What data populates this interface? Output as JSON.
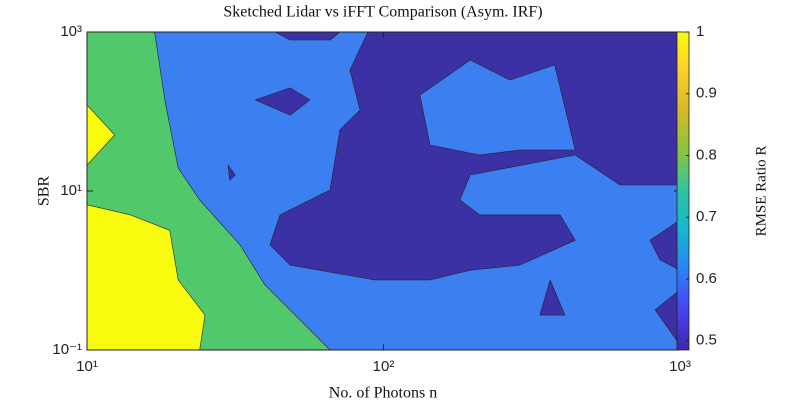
{
  "chart_data": {
    "type": "contour",
    "title": "Sketched Lidar vs iFFT Comparison (Asym. IRF)",
    "x_label": "No. of Photons n",
    "y_label": "SBR",
    "log_x": true,
    "log_y": true,
    "xlim": [
      10,
      1000
    ],
    "ylim": [
      0.1,
      1000
    ],
    "xticks": [
      {
        "value": 10,
        "label": "10¹"
      },
      {
        "value": 100,
        "label": "10²"
      },
      {
        "value": 1000,
        "label": "10³"
      }
    ],
    "yticks": [
      {
        "value": 0.1,
        "label": "10⁻¹"
      },
      {
        "value": 10,
        "label": "10¹"
      },
      {
        "value": 1000,
        "label": "10³"
      }
    ],
    "colorbar": {
      "label": "RMSE Ratio R",
      "lim": [
        0.485,
        1
      ],
      "ticks": [
        0.5,
        0.6,
        0.7,
        0.8,
        0.9,
        1
      ],
      "colormap": [
        "#3e26a8",
        "#4743f0",
        "#2d80f5",
        "#16b6d2",
        "#2cc59f",
        "#86c53d",
        "#d4b82b",
        "#fdce2c",
        "#f9fb0e"
      ]
    },
    "regions": [
      {
        "level": 0.6,
        "color": "#3b7ff0",
        "x": [
          10,
          1000,
          1000,
          10
        ],
        "y": [
          0.1,
          0.1,
          1000,
          1000
        ]
      },
      {
        "level": 0.8,
        "color": "#52c86c",
        "x": [
          16.9,
          18.3,
          20.3,
          24,
          32.8,
          39.8,
          66,
          10,
          10
        ],
        "y": [
          1000,
          140,
          19.5,
          7.7,
          2.1,
          0.66,
          0.1,
          0.1,
          1000
        ]
      },
      {
        "level": 1,
        "color": "#f9fb0e",
        "x": [
          10,
          12.4,
          10
        ],
        "y": [
          121,
          50.6,
          21.2
        ]
      },
      {
        "level": 1,
        "color": "#f9fb0e",
        "x": [
          10,
          14,
          19,
          20.3,
          25,
          24,
          10
        ],
        "y": [
          6.7,
          5,
          3.2,
          0.76,
          0.275,
          0.1,
          0.1
        ]
      },
      {
        "level": 0.5,
        "color": "#3b30a4",
        "x": [
          88.6,
          1000,
          1000,
          628,
          443,
          196,
          181,
          211,
          394,
          443,
          288,
          196,
          143.5,
          93.6,
          48.4,
          41.4,
          44.8,
          66,
          71.3,
          83.3,
          77.1
        ],
        "y": [
          1000,
          1000,
          11.9,
          11.9,
          28.4,
          15.9,
          7.7,
          5,
          5,
          2.4,
          1.17,
          1.01,
          0.76,
          0.76,
          1.17,
          2.1,
          5,
          10.3,
          58.5,
          104,
          333
        ]
      },
      {
        "level": 0.6,
        "color": "#3b7ff0",
        "x": [
          132.7,
          196,
          267,
          378,
          443,
          288,
          211,
          143.5
        ],
        "y": [
          161,
          445,
          249,
          385,
          32.8,
          32.8,
          28.4,
          37.9
        ]
      },
      {
        "level": 0.5,
        "color": "#3b30a4",
        "x": [
          43.1,
          71.3,
          66,
          48.4
        ],
        "y": [
          1000,
          1000,
          793,
          793
        ]
      },
      {
        "level": 0.5,
        "color": "#3b30a4",
        "x": [
          36.9,
          48.4,
          56.5,
          48.4
        ],
        "y": [
          140,
          198,
          140,
          90
        ]
      },
      {
        "level": 0.5,
        "color": "#3b30a4",
        "x": [
          29.9,
          31.6,
          30.3
        ],
        "y": [
          21.2,
          15.9,
          13.7
        ]
      },
      {
        "level": 0.5,
        "color": "#3b30a4",
        "x": [
          365,
          337,
          409
        ],
        "y": [
          0.76,
          0.275,
          0.275
        ]
      },
      {
        "level": 0.5,
        "color": "#3b30a4",
        "x": [
          792,
          1000,
          1000,
          857
        ],
        "y": [
          2.4,
          4.3,
          1.01,
          1.36
        ]
      },
      {
        "level": 0.5,
        "color": "#3b30a4",
        "x": [
          824,
          1000,
          1000
        ],
        "y": [
          0.32,
          0.57,
          0.116
        ]
      }
    ]
  }
}
